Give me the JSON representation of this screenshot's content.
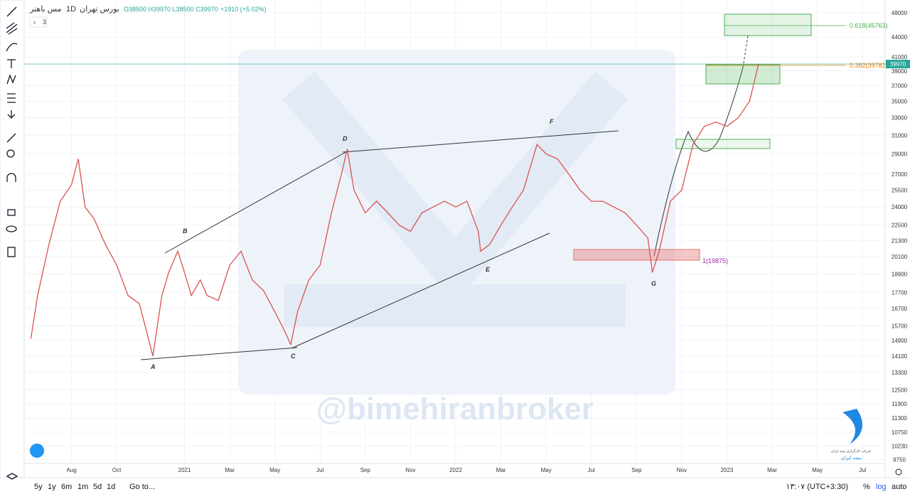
{
  "header": {
    "symbol": "مس باهنر",
    "interval": "1D",
    "exchange": "بورس تهران",
    "ohlc": "O38500 H39970 L38500 C39970",
    "change": "+1910 (+5.02%)",
    "indicator_count": "3"
  },
  "chart_data": {
    "type": "line",
    "color": "#d9534f",
    "log_scale": true,
    "x": [
      5.2,
      5.5,
      6,
      6.5,
      7,
      7.3,
      7.6,
      8,
      8.5,
      9,
      9.5,
      10,
      10.3,
      10.6,
      11,
      11.3,
      11.7,
      12,
      12.3,
      12.7,
      13,
      13.5,
      14,
      14.5,
      15,
      15.5,
      16,
      16.4,
      16.7,
      17,
      17.5,
      18,
      18.5,
      19,
      19.2,
      19.5,
      20,
      20.5,
      21,
      21.5,
      22,
      22.5,
      23,
      23.5,
      24,
      24.5,
      25,
      25.1,
      25.5,
      26,
      26.5,
      27,
      27.6,
      28,
      28.5,
      29,
      29.5,
      30,
      30.5,
      31,
      31.5,
      32,
      32.5,
      32.7,
      33,
      33.5,
      34,
      34.5,
      35,
      35.5,
      36,
      36.5,
      37,
      37.4
    ],
    "values": [
      15000,
      17500,
      21000,
      24500,
      26000,
      28500,
      24000,
      23000,
      21000,
      19500,
      17500,
      17000,
      15500,
      14100,
      17500,
      19000,
      20500,
      19000,
      17500,
      18500,
      17500,
      17200,
      19500,
      20500,
      18500,
      17800,
      16500,
      15500,
      14700,
      16500,
      18500,
      19500,
      23500,
      27500,
      29500,
      25500,
      23500,
      24500,
      23500,
      22500,
      22000,
      23500,
      24000,
      24500,
      24000,
      24500,
      22000,
      20500,
      21000,
      22500,
      24000,
      25500,
      30000,
      29000,
      28500,
      27000,
      25500,
      24500,
      24500,
      24000,
      23500,
      22500,
      21500,
      19000,
      20500,
      24500,
      25500,
      30000,
      32000,
      32500,
      32000,
      33000,
      35000,
      39970
    ],
    "xlim": [
      5,
      43
    ],
    "ylim": [
      9300,
      49600
    ],
    "xticks": [
      {
        "value": 7,
        "label": "Aug"
      },
      {
        "value": 9,
        "label": "Oct"
      },
      {
        "value": 12,
        "label": "2021"
      },
      {
        "value": 14,
        "label": "Mar"
      },
      {
        "value": 16,
        "label": "May"
      },
      {
        "value": 18,
        "label": "Jul"
      },
      {
        "value": 20,
        "label": "Sep"
      },
      {
        "value": 22,
        "label": "Nov"
      },
      {
        "value": 24,
        "label": "2022"
      },
      {
        "value": 26,
        "label": "Mar"
      },
      {
        "value": 28,
        "label": "May"
      },
      {
        "value": 30,
        "label": "Jul"
      },
      {
        "value": 32,
        "label": "Sep"
      },
      {
        "value": 34,
        "label": "Nov"
      },
      {
        "value": 36,
        "label": "2023"
      },
      {
        "value": 38,
        "label": "Mar"
      },
      {
        "value": 40,
        "label": "May"
      },
      {
        "value": 42,
        "label": "Jul"
      }
    ],
    "yticks": [
      48000,
      44000,
      41000,
      39000,
      37000,
      35000,
      33000,
      31000,
      29000,
      27000,
      25500,
      24000,
      22500,
      21300,
      20100,
      18900,
      17700,
      16700,
      15700,
      14900,
      14100,
      13300,
      12500,
      11900,
      11300,
      10750,
      10230,
      9750
    ],
    "last_value": 39970,
    "waves": [
      "A",
      "B",
      "C",
      "D",
      "E",
      "F",
      "G"
    ],
    "fib_labels": [
      "0.618(45763)",
      "0.382(39782)",
      "1(19875)"
    ],
    "watermark": "@bimehiranbroker"
  },
  "footer": {
    "ranges": [
      "5y",
      "1y",
      "6m",
      "1m",
      "5d",
      "1d"
    ],
    "goto": "Go to...",
    "clock": "۱۳:۰۷ (UTC+3:30)",
    "percent": "%",
    "log": "log",
    "auto": "auto"
  },
  "logo": {
    "line1": "شرکت کارگزاری بیمه ایران",
    "line2": "بیمه ایران"
  }
}
